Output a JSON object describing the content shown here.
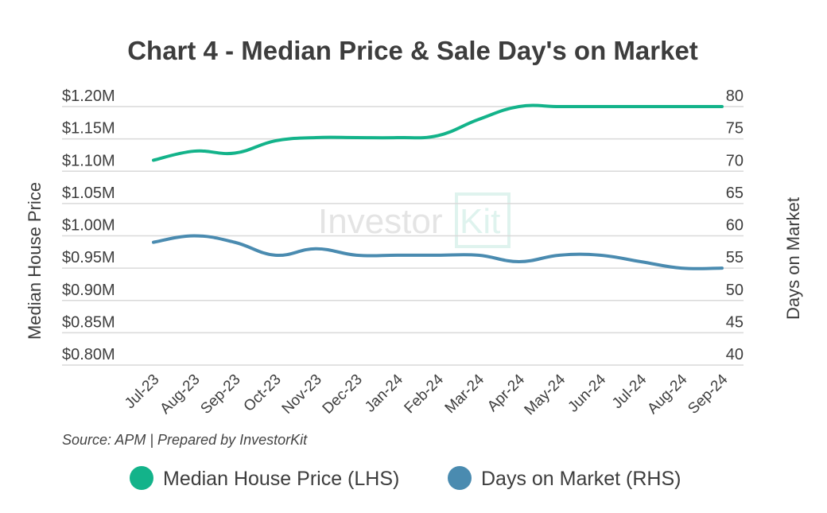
{
  "chart_data": {
    "type": "line",
    "title": "Chart 4 - Median Price & Sale Day's on Market",
    "source": "Source: APM | Prepared by InvestorKit",
    "watermark": "InvestorKit",
    "categories": [
      "Jul-23",
      "Aug-23",
      "Sep-23",
      "Oct-23",
      "Nov-23",
      "Dec-23",
      "Jan-24",
      "Feb-24",
      "Mar-24",
      "Apr-24",
      "May-24",
      "Jun-24",
      "Jul-24",
      "Aug-24",
      "Sep-24"
    ],
    "ylabel": "Median House Price",
    "y2label": "Days on Market",
    "ylim": [
      0.8,
      1.2
    ],
    "y2lim": [
      40,
      80
    ],
    "yticks": [
      "$0.80M",
      "$0.85M",
      "$0.90M",
      "$0.95M",
      "$1.00M",
      "$1.05M",
      "$1.10M",
      "$1.15M",
      "$1.20M"
    ],
    "y2ticks": [
      "40",
      "45",
      "50",
      "55",
      "60",
      "65",
      "70",
      "75",
      "80"
    ],
    "grid": true,
    "legend_placement": "bottom",
    "series": [
      {
        "name": "Median House Price (LHS)",
        "axis": "left",
        "color": "#13b38a",
        "values": [
          1.117,
          1.131,
          1.128,
          1.147,
          1.152,
          1.152,
          1.152,
          1.155,
          1.18,
          1.2,
          1.2,
          1.2,
          1.2,
          1.2,
          1.2
        ]
      },
      {
        "name": "Days on Market (RHS)",
        "axis": "right",
        "color": "#4a8bb0",
        "values": [
          59,
          60,
          59,
          57,
          58,
          57,
          57,
          57,
          57,
          56,
          57,
          57,
          56,
          55,
          55
        ]
      }
    ]
  }
}
